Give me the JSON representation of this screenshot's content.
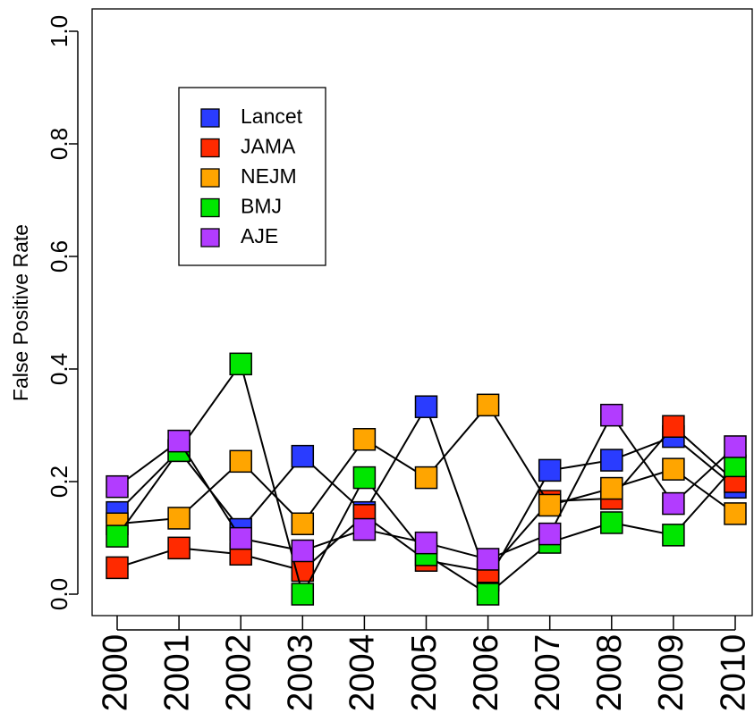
{
  "chart_data": {
    "type": "line",
    "title": "",
    "xlabel": "",
    "ylabel": "False Positive Rate",
    "x": [
      "2000",
      "2001",
      "2002",
      "2003",
      "2004",
      "2005",
      "2006",
      "2007",
      "2008",
      "2009",
      "2010"
    ],
    "yticks": [
      "0.0",
      "0.2",
      "0.4",
      "0.6",
      "0.8",
      "1.0"
    ],
    "ylim": [
      0,
      1
    ],
    "grid": false,
    "legend_position": "top-left",
    "series": [
      {
        "name": "Lancet",
        "color": "#2a3cff",
        "values": [
          0.145,
          0.255,
          0.115,
          0.245,
          0.145,
          0.333,
          0.025,
          0.22,
          0.238,
          0.28,
          0.19
        ]
      },
      {
        "name": "JAMA",
        "color": "#ff2a00",
        "values": [
          0.047,
          0.082,
          0.071,
          0.042,
          0.14,
          0.06,
          0.04,
          0.165,
          0.17,
          0.298,
          0.2
        ]
      },
      {
        "name": "NEJM",
        "color": "#ffa500",
        "values": [
          0.125,
          0.135,
          0.236,
          0.125,
          0.275,
          0.207,
          0.336,
          0.158,
          0.188,
          0.222,
          0.143
        ]
      },
      {
        "name": "BMJ",
        "color": "#00e600",
        "values": [
          0.103,
          0.255,
          0.409,
          0.0,
          0.207,
          0.07,
          0.0,
          0.092,
          0.127,
          0.105,
          0.228
        ]
      },
      {
        "name": "AJE",
        "color": "#b23cff",
        "values": [
          0.191,
          0.272,
          0.099,
          0.077,
          0.115,
          0.091,
          0.062,
          0.107,
          0.318,
          0.161,
          0.262
        ]
      }
    ]
  }
}
